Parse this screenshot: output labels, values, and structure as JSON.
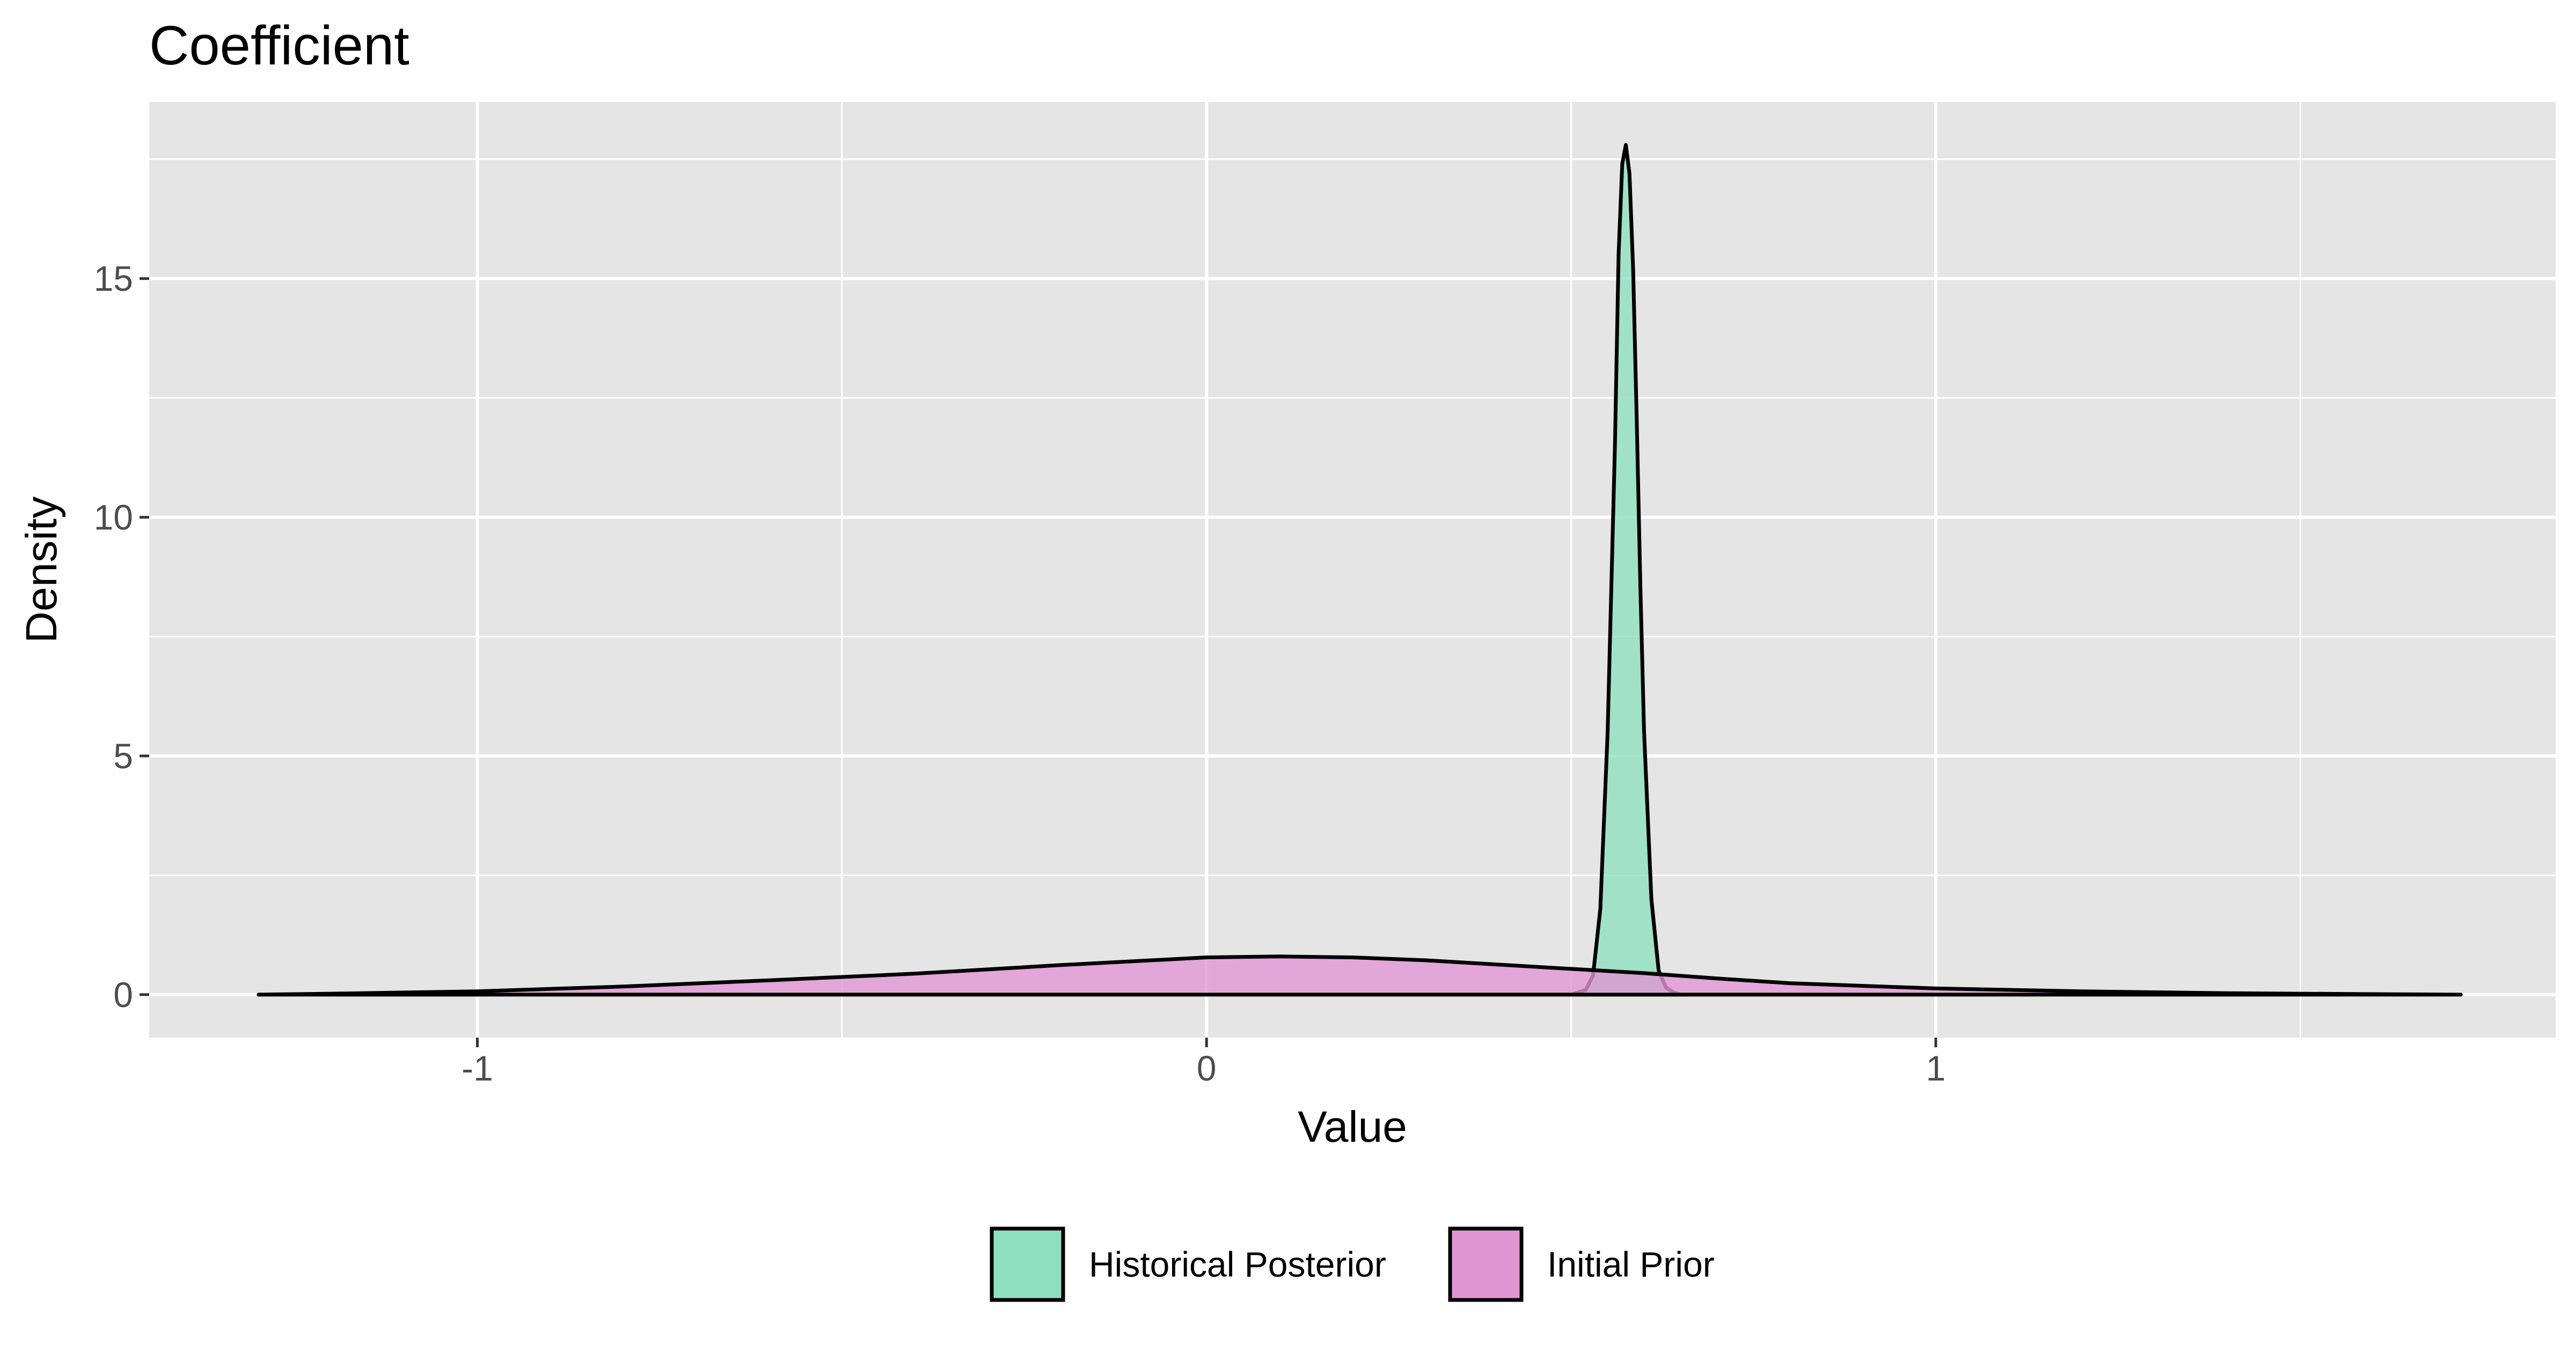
{
  "chart_data": {
    "type": "area",
    "title": "Coefficient",
    "xlabel": "Value",
    "ylabel": "Density",
    "xlim": [
      -1.45,
      1.85
    ],
    "ylim": [
      -0.9,
      18.7
    ],
    "x_ticks": [
      -1,
      0,
      1
    ],
    "x_tick_labels": [
      "-1",
      "0",
      "1"
    ],
    "y_ticks": [
      0,
      5,
      10,
      15
    ],
    "y_tick_labels": [
      "0",
      "5",
      "10",
      "15"
    ],
    "grid": true,
    "legend_position": "bottom",
    "series": [
      {
        "name": "Historical Posterior",
        "color": "#8ee0c1",
        "x": [
          0.5,
          0.52,
          0.53,
          0.54,
          0.55,
          0.56,
          0.565,
          0.57,
          0.575,
          0.58,
          0.585,
          0.59,
          0.595,
          0.6,
          0.61,
          0.62,
          0.63,
          0.64,
          0.65,
          0.66
        ],
        "y": [
          0.0,
          0.1,
          0.4,
          1.8,
          5.5,
          11.5,
          15.5,
          17.4,
          17.8,
          17.2,
          15.2,
          12.0,
          8.5,
          5.5,
          2.0,
          0.5,
          0.15,
          0.05,
          0.0,
          0.0
        ]
      },
      {
        "name": "Initial Prior",
        "color": "#e196d4",
        "x": [
          -1.3,
          -1.2,
          -1.0,
          -0.8,
          -0.6,
          -0.4,
          -0.2,
          0.0,
          0.1,
          0.2,
          0.3,
          0.4,
          0.5,
          0.6,
          0.7,
          0.8,
          1.0,
          1.2,
          1.4,
          1.6,
          1.72
        ],
        "y": [
          0.0,
          0.02,
          0.07,
          0.17,
          0.3,
          0.44,
          0.62,
          0.78,
          0.8,
          0.78,
          0.72,
          0.63,
          0.54,
          0.45,
          0.34,
          0.24,
          0.13,
          0.07,
          0.03,
          0.01,
          0.0
        ]
      }
    ]
  }
}
